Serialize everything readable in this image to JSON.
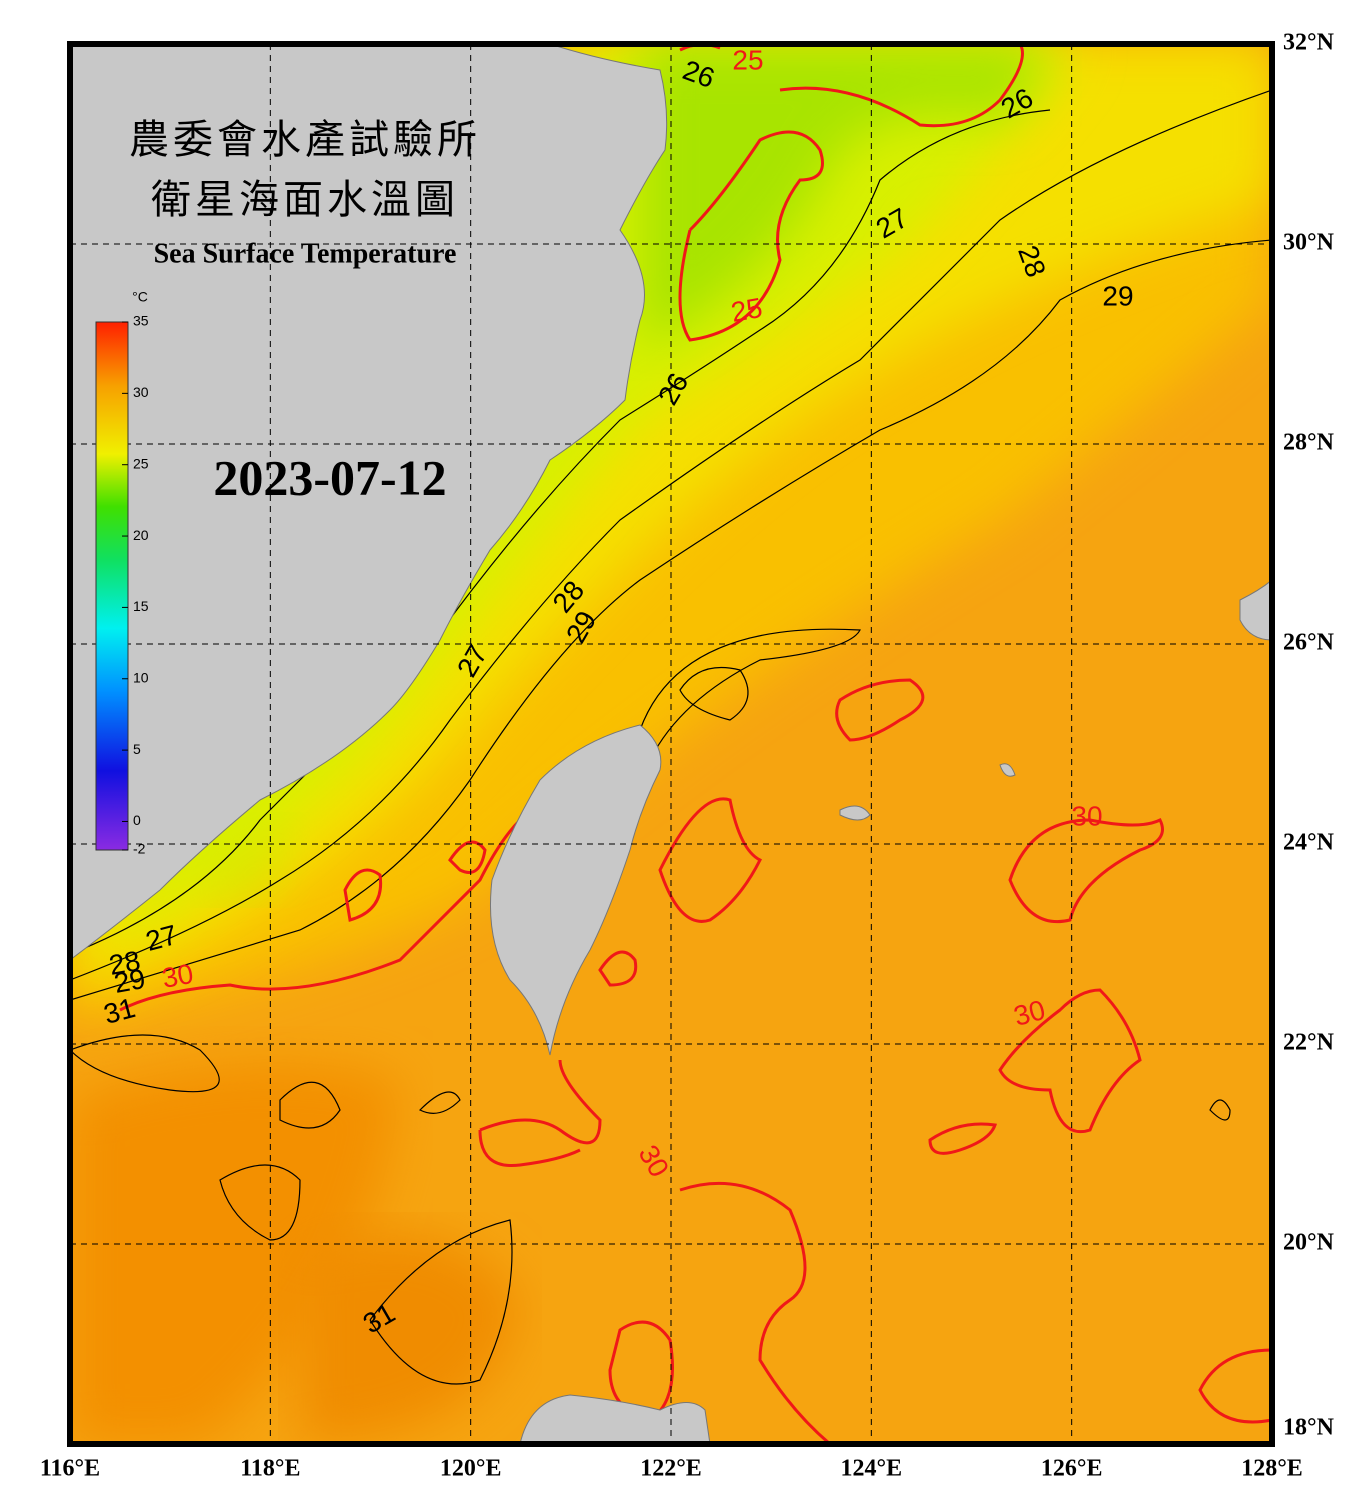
{
  "header": {
    "title_zh_1": "農委會水產試驗所",
    "title_zh_2": "衛星海面水溫圖",
    "title_en": "Sea Surface Temperature",
    "date": "2023-07-12"
  },
  "colorbar": {
    "unit": "°C",
    "range": [
      -2,
      35
    ],
    "ticks": [
      35,
      30,
      25,
      20,
      15,
      10,
      5,
      0,
      -2
    ]
  },
  "axes": {
    "lon_labels": [
      "116°E",
      "118°E",
      "120°E",
      "122°E",
      "124°E",
      "126°E",
      "128°E"
    ],
    "lat_labels": [
      "32°N",
      "30°N",
      "28°N",
      "26°N",
      "24°N",
      "22°N",
      "20°N",
      "18°N"
    ]
  },
  "contour_labels": [
    "25",
    "26",
    "26",
    "27",
    "28",
    "29",
    "25",
    "26",
    "28",
    "29",
    "27",
    "27",
    "28",
    "29",
    "30",
    "31",
    "30",
    "30",
    "30",
    "31"
  ]
}
